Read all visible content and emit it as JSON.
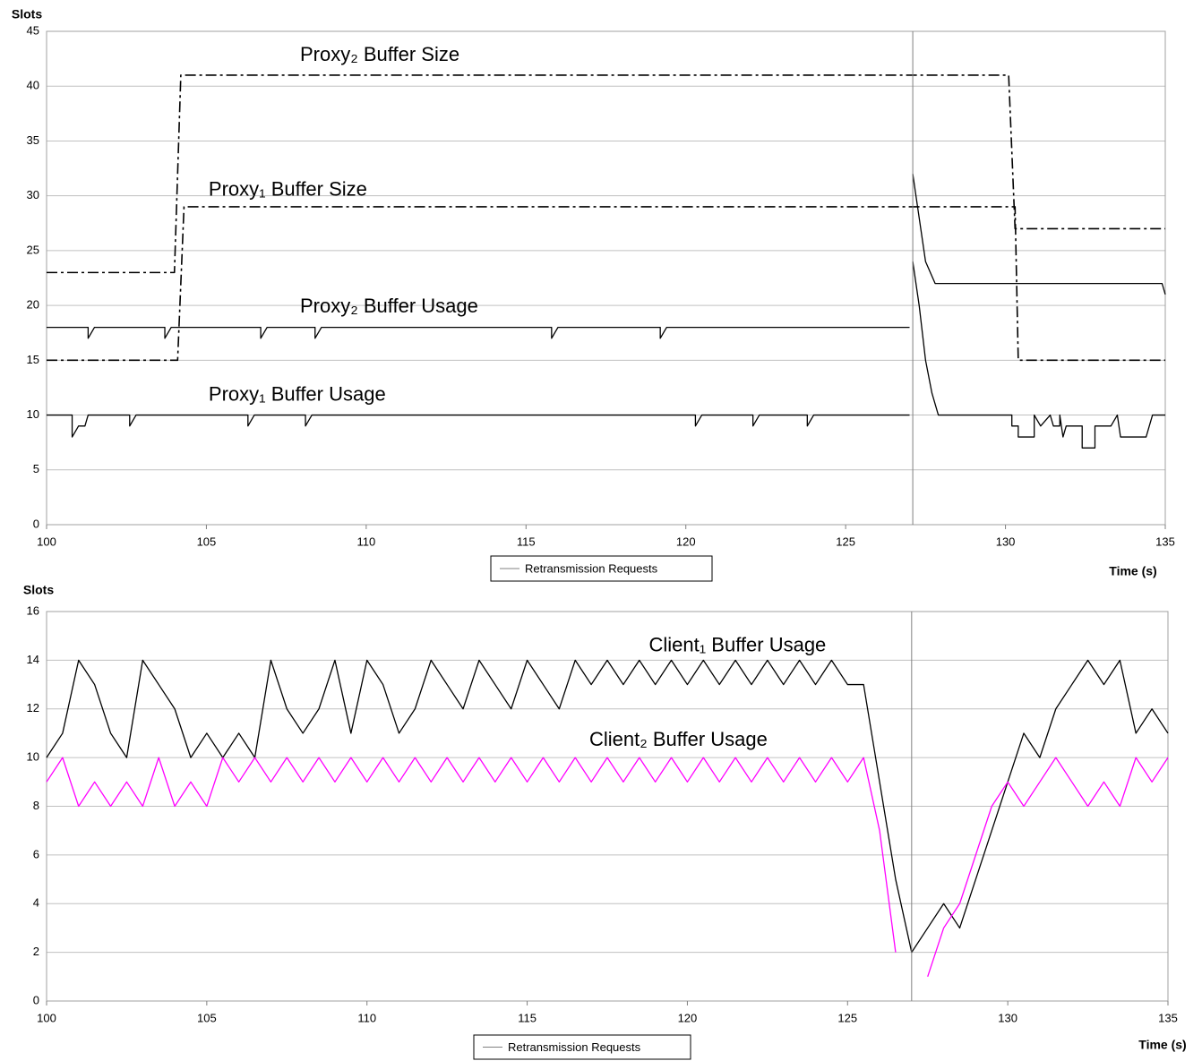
{
  "chart_data": [
    {
      "type": "line",
      "ylabel": "Slots",
      "xlabel": "Time (s)",
      "xlim": [
        100,
        135
      ],
      "xticks": [
        100,
        105,
        110,
        115,
        120,
        125,
        130,
        135
      ],
      "ylim": [
        0,
        45
      ],
      "yticks": [
        0,
        5,
        10,
        15,
        20,
        25,
        30,
        35,
        40,
        45
      ],
      "grid": true,
      "legend": "bottom",
      "series": [
        {
          "name": "Proxy₂ Buffer Size",
          "color": "#000000",
          "style": "dashdot",
          "x": [
            100,
            104,
            104.2,
            130.1,
            130.3,
            135
          ],
          "values": [
            23,
            23,
            41,
            41,
            27,
            27
          ]
        },
        {
          "name": "Proxy₁ Buffer Size",
          "color": "#000000",
          "style": "dashdot",
          "x": [
            100,
            104.1,
            104.3,
            130.3,
            130.4,
            135
          ],
          "values": [
            15,
            15,
            29,
            29,
            15,
            15
          ]
        },
        {
          "name": "Proxy₂ Buffer Usage",
          "color": "#000000",
          "x": [
            100,
            101.3,
            101.3,
            101.5,
            103.7,
            103.7,
            103.9,
            106.7,
            106.7,
            106.9,
            108.4,
            108.4,
            108.6,
            115.8,
            115.8,
            116,
            119.2,
            119.2,
            119.4,
            127,
            127.05,
            127.1,
            127.3,
            127.5,
            127.8,
            134.9,
            135
          ],
          "values": [
            18,
            18,
            17,
            18,
            18,
            17,
            18,
            18,
            17,
            18,
            18,
            17,
            18,
            18,
            17,
            18,
            18,
            17,
            18,
            18,
            null,
            32,
            28,
            24,
            22,
            22,
            21
          ]
        },
        {
          "name": "Proxy₁ Buffer Usage",
          "color": "#000000",
          "x": [
            100,
            100.8,
            100.8,
            101,
            101.2,
            101.3,
            102.6,
            102.6,
            102.8,
            106.3,
            106.3,
            106.5,
            108.1,
            108.1,
            108.3,
            120.3,
            120.3,
            120.5,
            122.1,
            122.1,
            122.3,
            123.8,
            123.8,
            124,
            127,
            127.05,
            127.1,
            127.3,
            127.5,
            127.7,
            127.9,
            130.2,
            130.2,
            130.4,
            130.4,
            130.9,
            130.9,
            131.1,
            131.4,
            131.5,
            131.7,
            131.7,
            131.8,
            131.9,
            132.4,
            132.4,
            132.8,
            132.8,
            133.3,
            133.5,
            133.6,
            134.4,
            134.6,
            135
          ],
          "values": [
            10,
            10,
            8,
            9,
            9,
            10,
            10,
            9,
            10,
            10,
            9,
            10,
            10,
            9,
            10,
            10,
            9,
            10,
            10,
            9,
            10,
            10,
            9,
            10,
            10,
            null,
            24,
            20,
            15,
            12,
            10,
            10,
            9,
            9,
            8,
            8,
            10,
            9,
            10,
            9,
            9,
            10,
            8,
            9,
            9,
            7,
            7,
            9,
            9,
            10,
            8,
            8,
            10,
            10
          ]
        },
        {
          "name": "Retransmission Requests",
          "color": "#808080",
          "x": [
            127.1
          ]
        }
      ]
    },
    {
      "type": "line",
      "ylabel": "Slots",
      "xlabel": "Time (s)",
      "xlim": [
        100,
        135
      ],
      "xticks": [
        100,
        105,
        110,
        115,
        120,
        125,
        130,
        135
      ],
      "ylim": [
        0,
        16
      ],
      "yticks": [
        0,
        2,
        4,
        6,
        8,
        10,
        12,
        14,
        16
      ],
      "grid": true,
      "legend": "bottom",
      "x": [
        100,
        100.5,
        101,
        101.5,
        102,
        102.5,
        103,
        103.5,
        104,
        104.5,
        105,
        105.5,
        106,
        106.5,
        107,
        107.5,
        108,
        108.5,
        109,
        109.5,
        110,
        110.5,
        111,
        111.5,
        112,
        112.5,
        113,
        113.5,
        114,
        114.5,
        115,
        115.5,
        116,
        116.5,
        117,
        117.5,
        118,
        118.5,
        119,
        119.5,
        120,
        120.5,
        121,
        121.5,
        122,
        122.5,
        123,
        123.5,
        124,
        124.5,
        125,
        125.5,
        126,
        126.5,
        127,
        127.5,
        128,
        128.5,
        129,
        129.5,
        130,
        130.5,
        131,
        131.5,
        132,
        132.5,
        133,
        133.5,
        134,
        134.5,
        135
      ],
      "series": [
        {
          "name": "Client₁ Buffer Usage",
          "color": "#000000",
          "values": [
            10,
            11,
            14,
            13,
            11,
            10,
            14,
            13,
            12,
            10,
            11,
            10,
            11,
            10,
            14,
            12,
            11,
            12,
            14,
            11,
            14,
            13,
            11,
            12,
            14,
            13,
            12,
            14,
            13,
            12,
            14,
            13,
            12,
            14,
            13,
            14,
            13,
            14,
            13,
            14,
            13,
            14,
            13,
            14,
            13,
            14,
            13,
            14,
            13,
            14,
            13,
            13,
            9,
            5,
            2,
            3,
            4,
            3,
            5,
            7,
            9,
            11,
            10,
            12,
            13,
            14,
            13,
            14,
            11,
            12,
            11
          ]
        },
        {
          "name": "Client₂ Buffer Usage",
          "color": "#ff00ff",
          "values": [
            9,
            10,
            8,
            9,
            8,
            9,
            8,
            10,
            8,
            9,
            8,
            10,
            9,
            10,
            9,
            10,
            9,
            10,
            9,
            10,
            9,
            10,
            9,
            10,
            9,
            10,
            9,
            10,
            9,
            10,
            9,
            10,
            9,
            10,
            9,
            10,
            9,
            10,
            9,
            10,
            9,
            10,
            9,
            10,
            9,
            10,
            9,
            10,
            9,
            10,
            9,
            10,
            7,
            2,
            null,
            1,
            3,
            4,
            6,
            8,
            9,
            8,
            9,
            10,
            9,
            8,
            9,
            8,
            10,
            9,
            10
          ]
        },
        {
          "name": "Retransmission Requests",
          "color": "#808080",
          "x": [
            127
          ]
        }
      ]
    }
  ]
}
